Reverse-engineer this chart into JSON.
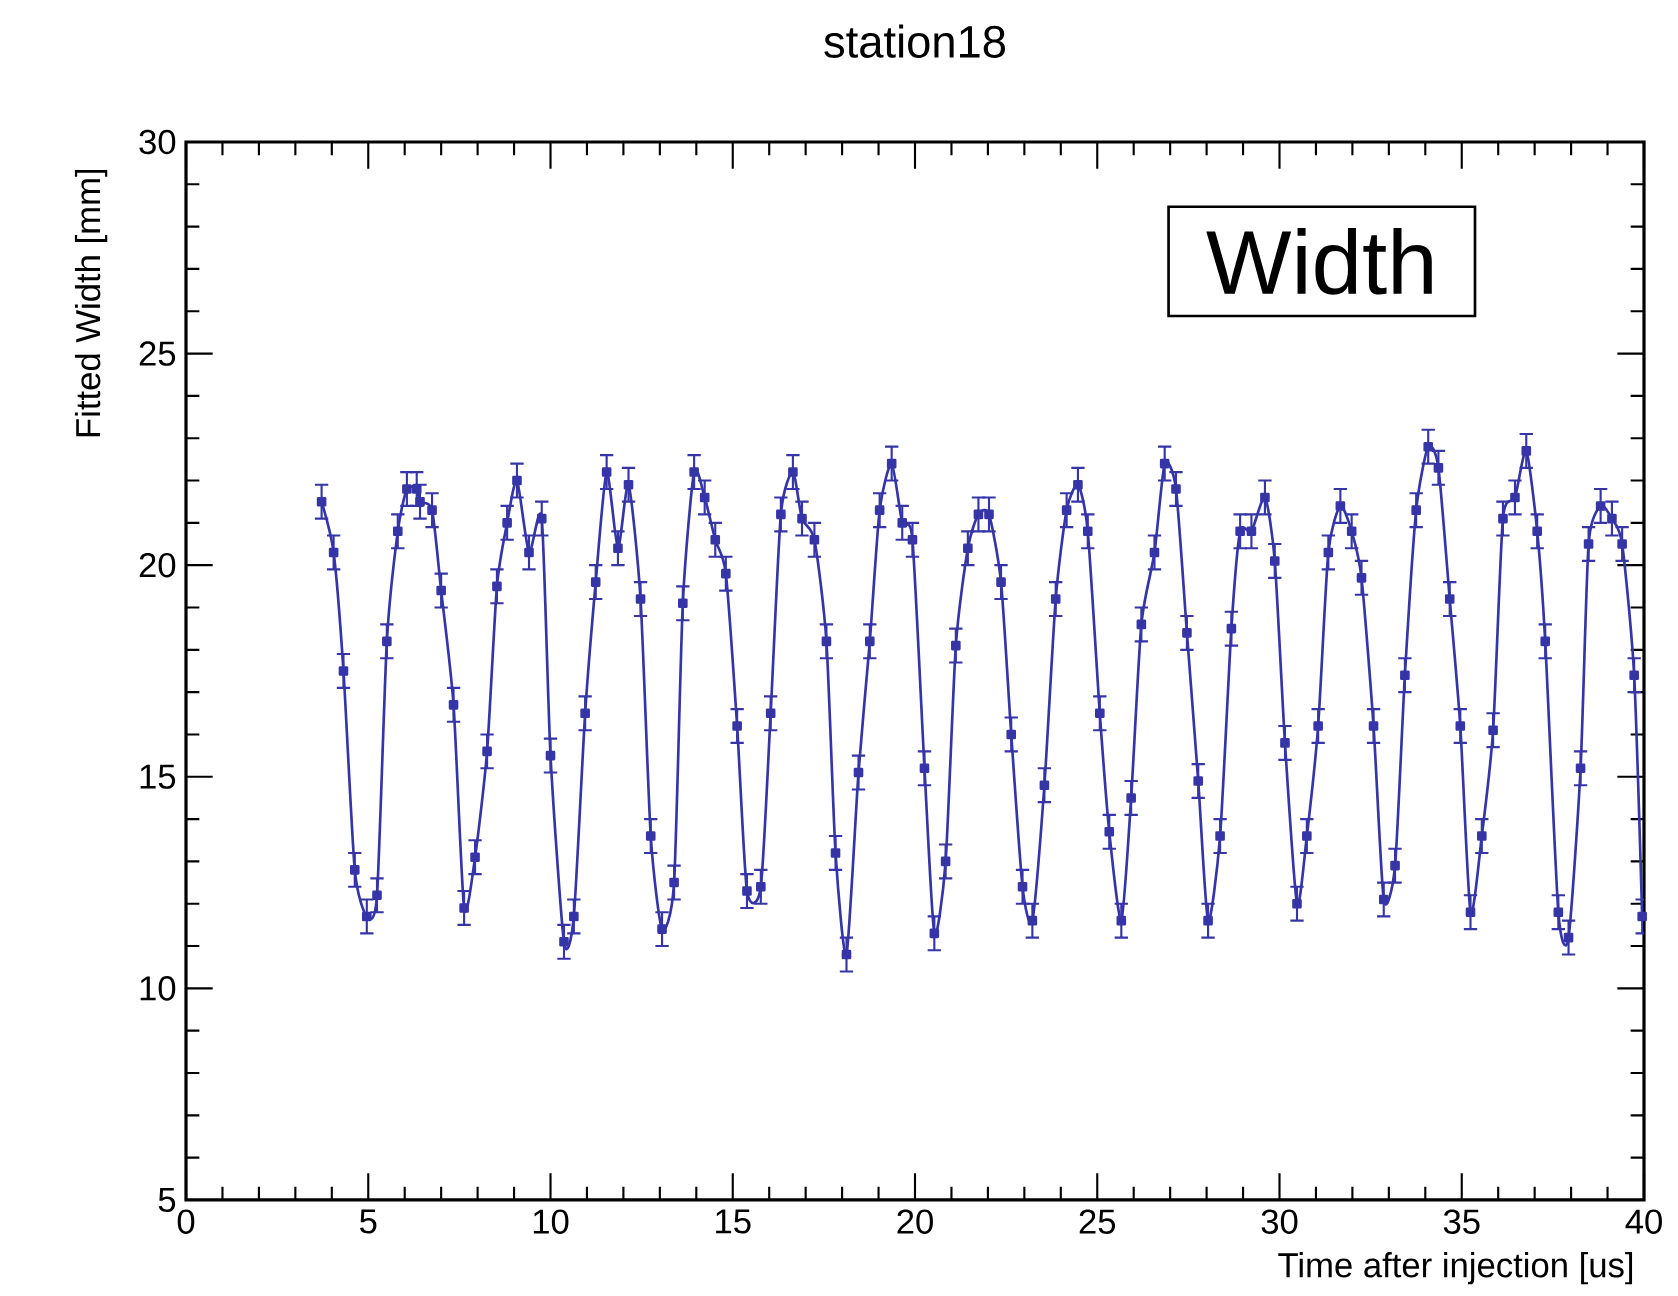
{
  "chart_data": {
    "type": "line",
    "title": "station18",
    "xlabel": "Time after injection [us]",
    "ylabel": "Fitted Width [mm]",
    "annotations": [
      "Width"
    ],
    "xlim": [
      0,
      40
    ],
    "ylim": [
      5,
      30
    ],
    "xticks": [
      0,
      5,
      10,
      15,
      20,
      25,
      30,
      35,
      40
    ],
    "yticks": [
      5,
      10,
      15,
      20,
      25,
      30
    ],
    "grid": false,
    "marker": "square",
    "line_style": "solid",
    "series": [
      {
        "color": "#3535a8",
        "x": [
          3.72,
          4.05,
          4.32,
          4.63,
          4.96,
          5.24,
          5.51,
          5.81,
          6.06,
          6.33,
          6.42,
          6.75,
          7.0,
          7.34,
          7.63,
          7.93,
          8.26,
          8.53,
          8.81,
          9.08,
          9.41,
          9.76,
          10.0,
          10.37,
          10.64,
          10.95,
          11.24,
          11.54,
          11.85,
          12.14,
          12.47,
          12.75,
          13.06,
          13.39,
          13.63,
          13.94,
          14.23,
          14.52,
          14.81,
          15.12,
          15.39,
          15.77,
          16.04,
          16.32,
          16.65,
          16.9,
          17.24,
          17.57,
          17.82,
          18.12,
          18.45,
          18.76,
          19.03,
          19.36,
          19.65,
          19.93,
          20.26,
          20.53,
          20.84,
          21.12,
          21.45,
          21.74,
          22.03,
          22.36,
          22.64,
          22.95,
          23.22,
          23.55,
          23.86,
          24.16,
          24.47,
          24.74,
          25.07,
          25.33,
          25.66,
          25.93,
          26.21,
          26.57,
          26.85,
          27.16,
          27.46,
          27.77,
          28.04,
          28.37,
          28.68,
          28.92,
          29.23,
          29.6,
          29.87,
          30.15,
          30.48,
          30.75,
          31.06,
          31.34,
          31.67,
          31.98,
          32.25,
          32.58,
          32.86,
          33.17,
          33.44,
          33.75,
          34.08,
          34.36,
          34.67,
          34.96,
          35.24,
          35.55,
          35.86,
          36.13,
          36.46,
          36.77,
          37.07,
          37.29,
          37.65,
          37.93,
          38.26,
          38.48,
          38.81,
          39.12,
          39.4,
          39.73,
          39.95
        ],
        "values": [
          21.5,
          20.3,
          17.5,
          12.8,
          11.7,
          12.2,
          18.2,
          20.8,
          21.8,
          21.8,
          21.5,
          21.3,
          19.4,
          16.7,
          11.9,
          13.1,
          15.6,
          19.5,
          21.0,
          22.0,
          20.3,
          21.1,
          15.5,
          11.1,
          11.7,
          16.5,
          19.6,
          22.2,
          20.4,
          21.9,
          19.2,
          13.6,
          11.4,
          12.5,
          19.1,
          22.2,
          21.6,
          20.6,
          19.8,
          16.2,
          12.3,
          12.4,
          16.5,
          21.2,
          22.2,
          21.1,
          20.6,
          18.2,
          13.2,
          10.8,
          15.1,
          18.2,
          21.3,
          22.4,
          21.0,
          20.6,
          15.2,
          11.3,
          13.0,
          18.1,
          20.4,
          21.2,
          21.2,
          19.6,
          16.0,
          12.4,
          11.6,
          14.8,
          19.2,
          21.3,
          21.9,
          20.8,
          16.5,
          13.7,
          11.6,
          14.5,
          18.6,
          20.3,
          22.4,
          21.8,
          18.4,
          14.9,
          11.6,
          13.6,
          18.5,
          20.8,
          20.8,
          21.6,
          20.1,
          15.8,
          12.0,
          13.6,
          16.2,
          20.3,
          21.4,
          20.8,
          19.7,
          16.2,
          12.1,
          12.9,
          17.4,
          21.3,
          22.8,
          22.3,
          19.2,
          16.2,
          11.8,
          13.6,
          16.1,
          21.1,
          21.6,
          22.7,
          20.8,
          18.2,
          11.8,
          11.2,
          15.2,
          20.5,
          21.4,
          21.1,
          20.5,
          17.4,
          11.7
        ],
        "errors": [
          0.4,
          0.4,
          0.4,
          0.4,
          0.4,
          0.4,
          0.4,
          0.4,
          0.4,
          0.4,
          0.4,
          0.4,
          0.4,
          0.4,
          0.4,
          0.4,
          0.4,
          0.4,
          0.4,
          0.4,
          0.4,
          0.4,
          0.4,
          0.4,
          0.4,
          0.4,
          0.4,
          0.4,
          0.4,
          0.4,
          0.4,
          0.4,
          0.4,
          0.4,
          0.4,
          0.4,
          0.4,
          0.4,
          0.4,
          0.4,
          0.4,
          0.4,
          0.4,
          0.4,
          0.4,
          0.4,
          0.4,
          0.4,
          0.4,
          0.4,
          0.4,
          0.4,
          0.4,
          0.4,
          0.4,
          0.4,
          0.4,
          0.4,
          0.4,
          0.4,
          0.4,
          0.4,
          0.4,
          0.4,
          0.4,
          0.4,
          0.4,
          0.4,
          0.4,
          0.4,
          0.4,
          0.4,
          0.4,
          0.4,
          0.4,
          0.4,
          0.4,
          0.4,
          0.4,
          0.4,
          0.4,
          0.4,
          0.4,
          0.4,
          0.4,
          0.4,
          0.4,
          0.4,
          0.4,
          0.4,
          0.4,
          0.4,
          0.4,
          0.4,
          0.4,
          0.4,
          0.4,
          0.4,
          0.4,
          0.4,
          0.4,
          0.4,
          0.4,
          0.4,
          0.4,
          0.4,
          0.4,
          0.4,
          0.4,
          0.4,
          0.4,
          0.4,
          0.4,
          0.4,
          0.4,
          0.4,
          0.4,
          0.4,
          0.4,
          0.4,
          0.4,
          0.4,
          0.4
        ]
      }
    ]
  }
}
